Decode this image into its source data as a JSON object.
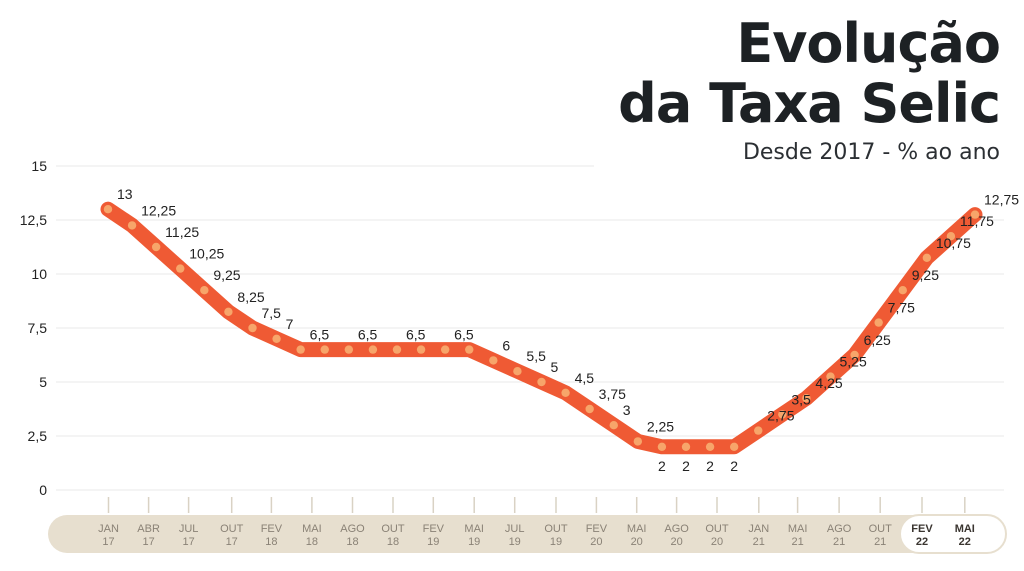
{
  "title": {
    "line1": "Evolução",
    "line2": "da Taxa Selic",
    "subtitle": "Desde 2017 - % ao ano"
  },
  "colors": {
    "line": "#ef5a34",
    "dots": "#f7a56a",
    "band": "#e7dfcf",
    "grid": "#e9e9e9",
    "text": "#1d2124"
  },
  "chart_data": {
    "type": "line",
    "title": "Evolução da Taxa Selic",
    "subtitle": "Desde 2017 - % ao ano",
    "xlabel": "",
    "ylabel": "",
    "ylim": [
      0,
      15
    ],
    "yticks": [
      "0",
      "2,5",
      "5",
      "7,5",
      "10",
      "12,5",
      "15"
    ],
    "ytick_values": [
      0,
      2.5,
      5,
      7.5,
      10,
      12.5,
      15
    ],
    "grid": true,
    "x_axis_labels": [
      {
        "month": "JAN",
        "year": "17"
      },
      {
        "month": "ABR",
        "year": "17"
      },
      {
        "month": "JUL",
        "year": "17"
      },
      {
        "month": "OUT",
        "year": "17"
      },
      {
        "month": "FEV",
        "year": "18"
      },
      {
        "month": "MAI",
        "year": "18"
      },
      {
        "month": "AGO",
        "year": "18"
      },
      {
        "month": "OUT",
        "year": "18"
      },
      {
        "month": "FEV",
        "year": "19"
      },
      {
        "month": "MAI",
        "year": "19"
      },
      {
        "month": "JUL",
        "year": "19"
      },
      {
        "month": "OUT",
        "year": "19"
      },
      {
        "month": "FEV",
        "year": "20"
      },
      {
        "month": "MAI",
        "year": "20"
      },
      {
        "month": "AGO",
        "year": "20"
      },
      {
        "month": "OUT",
        "year": "20"
      },
      {
        "month": "JAN",
        "year": "21"
      },
      {
        "month": "MAI",
        "year": "21"
      },
      {
        "month": "AGO",
        "year": "21"
      },
      {
        "month": "OUT",
        "year": "21"
      },
      {
        "month": "FEV",
        "year": "22",
        "highlight": true
      },
      {
        "month": "MAI",
        "year": "22",
        "highlight": true
      }
    ],
    "series": [
      {
        "values": [
          13,
          12.25,
          11.25,
          10.25,
          9.25,
          8.25,
          7.5,
          7,
          6.5,
          6.5,
          6.5,
          6.5,
          6.5,
          6.5,
          6.5,
          6.5,
          6,
          5.5,
          5,
          4.5,
          3.75,
          3,
          2.25,
          2,
          2,
          2,
          2,
          2.75,
          3.5,
          4.25,
          5.25,
          6.25,
          7.75,
          9.25,
          10.75,
          11.75,
          12.75
        ],
        "labels": [
          "13",
          "12,25",
          "11,25",
          "10,25",
          "9,25",
          "8,25",
          "7,5",
          "7",
          "6,5",
          "6,5",
          "6,5",
          "6,5",
          "6,5",
          "6,5",
          "6,5",
          "6,5",
          "6",
          "5,5",
          "5",
          "4,5",
          "3,75",
          "3",
          "2,25",
          "2",
          "2",
          "2",
          "2",
          "2,75",
          "3,5",
          "4,25",
          "5,25",
          "6,25",
          "7,75",
          "9,25",
          "10,75",
          "11,75",
          "12,75"
        ],
        "labeled": [
          true,
          true,
          true,
          true,
          true,
          true,
          true,
          true,
          true,
          false,
          true,
          false,
          true,
          false,
          true,
          false,
          true,
          true,
          true,
          true,
          true,
          true,
          true,
          true,
          true,
          true,
          true,
          true,
          true,
          true,
          true,
          true,
          true,
          true,
          true,
          true,
          true
        ],
        "label_below": [
          false,
          false,
          false,
          false,
          false,
          false,
          false,
          false,
          false,
          false,
          false,
          false,
          false,
          false,
          false,
          false,
          false,
          false,
          false,
          false,
          false,
          false,
          false,
          true,
          true,
          true,
          true,
          false,
          false,
          false,
          false,
          false,
          false,
          false,
          false,
          false,
          false
        ]
      }
    ]
  }
}
